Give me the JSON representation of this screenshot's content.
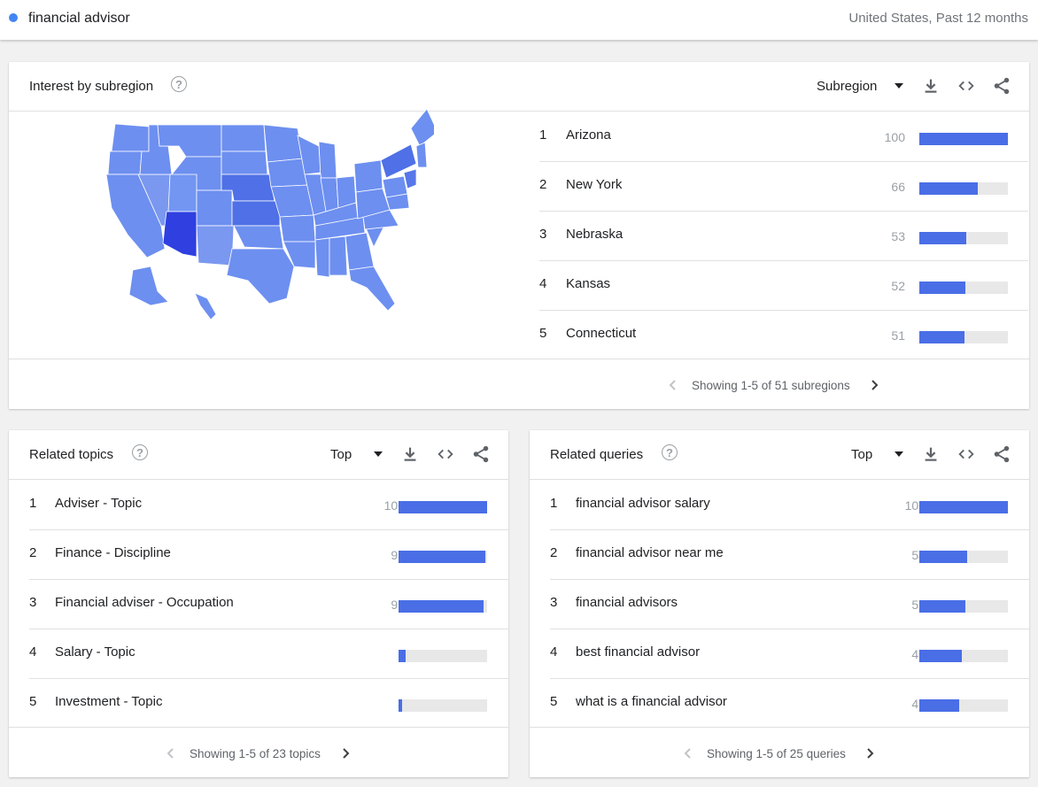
{
  "search": {
    "term": "financial advisor",
    "scope": "United States, Past 12 months",
    "term_color": "#4285f4"
  },
  "subregion": {
    "title": "Interest by subregion",
    "select_label": "Subregion",
    "items": [
      {
        "rank": "1",
        "name": "Arizona",
        "value": 100
      },
      {
        "rank": "2",
        "name": "New York",
        "value": 66
      },
      {
        "rank": "3",
        "name": "Nebraska",
        "value": 53
      },
      {
        "rank": "4",
        "name": "Kansas",
        "value": 52
      },
      {
        "rank": "5",
        "name": "Connecticut",
        "value": 51
      }
    ],
    "pager_text": "Showing 1-5 of 51 subregions"
  },
  "topics": {
    "title": "Related topics",
    "select_label": "Top",
    "items": [
      {
        "rank": "1",
        "name": "Adviser - Topic",
        "value": 100
      },
      {
        "rank": "2",
        "name": "Finance - Discipline",
        "value": 98
      },
      {
        "rank": "3",
        "name": "Financial adviser - Occupation",
        "value": 96
      },
      {
        "rank": "4",
        "name": "Salary - Topic",
        "value": 8
      },
      {
        "rank": "5",
        "name": "Investment - Topic",
        "value": 4
      }
    ],
    "pager_text": "Showing 1-5 of 23 topics"
  },
  "queries": {
    "title": "Related queries",
    "select_label": "Top",
    "items": [
      {
        "rank": "1",
        "name": "financial advisor salary",
        "value": 100
      },
      {
        "rank": "2",
        "name": "financial advisor near me",
        "value": 54
      },
      {
        "rank": "3",
        "name": "financial advisors",
        "value": 52
      },
      {
        "rank": "4",
        "name": "best financial advisor",
        "value": 48
      },
      {
        "rank": "5",
        "name": "what is a financial advisor",
        "value": 45
      }
    ],
    "pager_text": "Showing 1-5 of 25 queries"
  },
  "colors": {
    "bar": "#4a6ee6",
    "map_base": "#6d8ff0",
    "map_top": "#2f3fe0"
  },
  "icons": {
    "help": "help-circle-icon",
    "download": "download-icon",
    "embed": "code-icon",
    "share": "share-icon",
    "prev": "chevron-left-icon",
    "next": "chevron-right-icon"
  }
}
